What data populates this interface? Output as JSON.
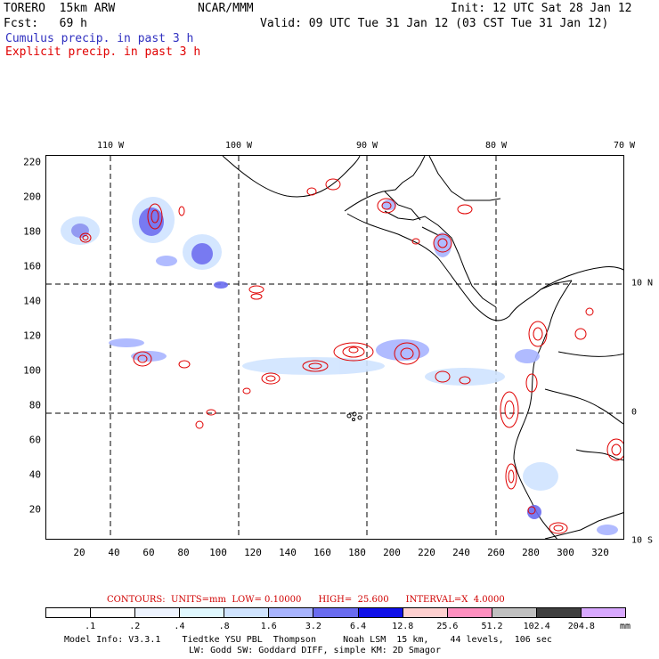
{
  "header": {
    "model": "TORERO  15km ARW",
    "center": "NCAR/MMM",
    "init": "Init: 12 UTC Sat 28 Jan 12",
    "fcst": "Fcst:   69 h",
    "valid": "Valid: 09 UTC Tue 31 Jan 12 (03 CST Tue 31 Jan 12)"
  },
  "legend": {
    "cumulus": "Cumulus precip. in past 3 h",
    "explicit": "Explicit precip. in past 3 h",
    "cumulus_color": "#3030c0",
    "explicit_color": "#e00000"
  },
  "map": {
    "lon_labels": [
      "110 W",
      "100 W",
      "90 W",
      "80 W",
      "70 W"
    ],
    "lat_labels": [
      "10 N",
      "0",
      "10 S"
    ],
    "y_ticks": [
      "220",
      "200",
      "180",
      "160",
      "140",
      "120",
      "100",
      "80",
      "60",
      "40",
      "20"
    ],
    "x_ticks": [
      "20",
      "40",
      "60",
      "80",
      "100",
      "120",
      "140",
      "160",
      "180",
      "200",
      "220",
      "240",
      "260",
      "280",
      "300",
      "320"
    ]
  },
  "contours_info": "CONTOURS:  UNITS=mm  LOW= 0.10000      HIGH=  25.600      INTERVAL=X  4.0000",
  "colorbar": {
    "labels": [
      ".1",
      ".2",
      ".4",
      ".8",
      "1.6",
      "3.2",
      "6.4",
      "12.8",
      "25.6",
      "51.2",
      "102.4",
      "204.8"
    ],
    "unit": "mm",
    "colors": [
      "#ffffff",
      "#ffffff",
      "#eef4ff",
      "#e0f8ff",
      "#d0e4ff",
      "#a8b4ff",
      "#6a6cf0",
      "#1010e8",
      "#ffd0d0",
      "#ff90c0",
      "#c0c0c0",
      "#404040",
      "#d8a8ff"
    ]
  },
  "footer": {
    "line1": "Model Info: V3.3.1    Tiedtke YSU PBL  Thompson     Noah LSM  15 km,    44 levels,  106 sec",
    "line2": "LW: Godd SW: Goddard DIFF, simple KM: 2D Smagor"
  }
}
